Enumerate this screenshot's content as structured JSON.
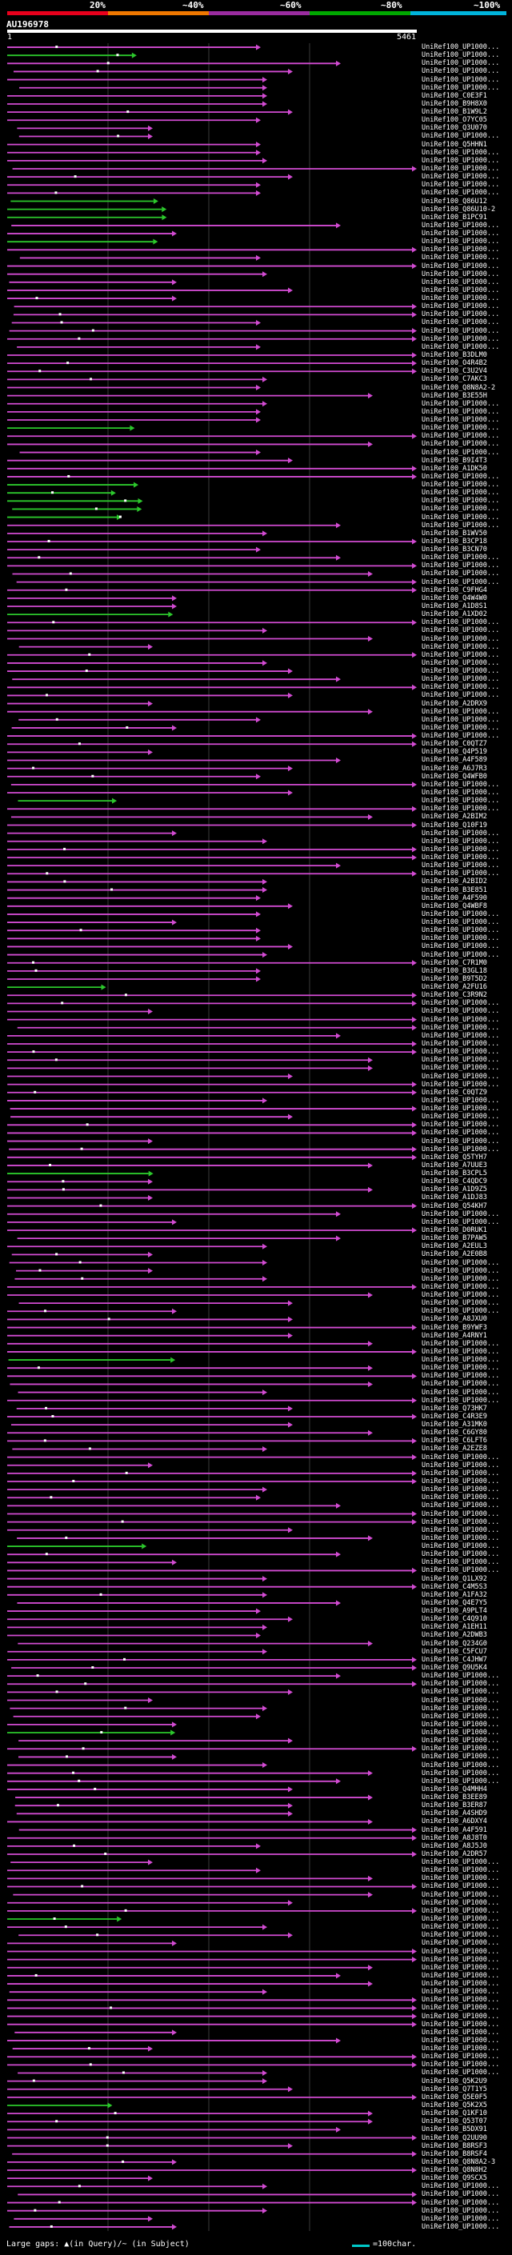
{
  "header": {
    "scale_marks": [
      {
        "label": "20%",
        "color": "#e8001c"
      },
      {
        "label": "~40%",
        "color": "#f07800"
      },
      {
        "label": "~60%",
        "color": "#9b2ca0"
      },
      {
        "label": "~80%",
        "color": "#00a800"
      },
      {
        "label": "~100%",
        "color": "#00b4dc"
      }
    ],
    "query_id": "AU196978",
    "query_start": "1",
    "query_end": "5461"
  },
  "colors": {
    "magenta": "#d24bd2",
    "green": "#2cc82c",
    "grid": "#3a3a3a",
    "dot": "#ffffff"
  },
  "hits": [
    "UniRef100_UP1000...",
    "UniRef100_UP1000...",
    "UniRef100_UP1000...",
    "UniRef100_UP1000...",
    "UniRef100_UP1000...",
    "UniRef100_UP1000...",
    "UniRef100_C0E3F1",
    "UniRef100_B9H8X0",
    "UniRef100_B1W9L2",
    "UniRef100_O7YC05",
    "UniRef100_Q3U070",
    "UniRef100_UP1000...",
    "UniRef100_Q5HHN1",
    "UniRef100_UP1000...",
    "UniRef100_UP1000...",
    "UniRef100_UP1000...",
    "UniRef100_UP1000...",
    "UniRef100_UP1000...",
    "UniRef100_UP1000...",
    "UniRef100_Q86U12",
    "UniRef100_Q86U10-2",
    "UniRef100_B1PC91",
    "UniRef100_UP1000...",
    "UniRef100_UP1000...",
    "UniRef100_UP1000...",
    "UniRef100_UP1000...",
    "UniRef100_UP1000...",
    "UniRef100_UP1000...",
    "UniRef100_UP1000...",
    "UniRef100_UP1000...",
    "UniRef100_UP1000...",
    "UniRef100_UP1000...",
    "UniRef100_UP1000...",
    "UniRef100_UP1000...",
    "UniRef100_UP1000...",
    "UniRef100_UP1000...",
    "UniRef100_UP1000...",
    "UniRef100_UP1000...",
    "UniRef100_B3DLM0",
    "UniRef100_O4R4B2",
    "UniRef100_C3U2V4",
    "UniRef100_C7AKC3",
    "UniRef100_Q8N8A2-2",
    "UniRef100_B3E55H",
    "UniRef100_UP1000...",
    "UniRef100_UP1000...",
    "UniRef100_UP1000...",
    "UniRef100_UP1000...",
    "UniRef100_UP1000...",
    "UniRef100_UP1000...",
    "UniRef100_UP1000...",
    "UniRef100_B9I4T3",
    "UniRef100_A1DK50",
    "UniRef100_UP1000...",
    "UniRef100_UP1000...",
    "UniRef100_UP1000...",
    "UniRef100_UP1000...",
    "UniRef100_UP1000...",
    "UniRef100_UP1000...",
    "UniRef100_UP1000...",
    "UniRef100_B1WV50",
    "UniRef100_B3CP18",
    "UniRef100_B3CN70",
    "UniRef100_UP1000...",
    "UniRef100_UP1000...",
    "UniRef100_UP1000...",
    "UniRef100_UP1000...",
    "UniRef100_C9FHG4",
    "UniRef100_Q4W4W0",
    "UniRef100_A1D8S1",
    "UniRef100_A1XD02",
    "UniRef100_UP1000...",
    "UniRef100_UP1000...",
    "UniRef100_UP1000...",
    "UniRef100_UP1000...",
    "UniRef100_UP1000...",
    "UniRef100_UP1000...",
    "UniRef100_UP1000...",
    "UniRef100_UP1000...",
    "UniRef100_UP1000...",
    "UniRef100_UP1000...",
    "UniRef100_A2DRX9",
    "UniRef100_UP1000...",
    "UniRef100_UP1000...",
    "UniRef100_UP1000...",
    "UniRef100_UP1000...",
    "UniRef100_C0QTZ7",
    "UniRef100_Q4P519",
    "UniRef100_A4F589",
    "UniRef100_A6J7R3",
    "UniRef100_Q4WFB0",
    "UniRef100_UP1000...",
    "UniRef100_UP1000...",
    "UniRef100_UP1000...",
    "UniRef100_UP1000...",
    "UniRef100_A2BIM2",
    "UniRef100_Q10F19",
    "UniRef100_UP1000...",
    "UniRef100_UP1000...",
    "UniRef100_UP1000...",
    "UniRef100_UP1000...",
    "UniRef100_UP1000...",
    "UniRef100_UP1000...",
    "UniRef100_A2BID2",
    "UniRef100_B3E851",
    "UniRef100_A4F590",
    "UniRef100_Q4WBF8",
    "UniRef100_UP1000...",
    "UniRef100_UP1000...",
    "UniRef100_UP1000...",
    "UniRef100_UP1000...",
    "UniRef100_UP1000...",
    "UniRef100_UP1000...",
    "UniRef100_C7R1M0",
    "UniRef100_B3GL18",
    "UniRef100_B9T5D2",
    "UniRef100_A2FU16",
    "UniRef100_C3R9N2",
    "UniRef100_UP1000...",
    "UniRef100_UP1000...",
    "UniRef100_UP1000...",
    "UniRef100_UP1000...",
    "UniRef100_UP1000...",
    "UniRef100_UP1000...",
    "UniRef100_UP1000...",
    "UniRef100_UP1000...",
    "UniRef100_UP1000...",
    "UniRef100_UP1000...",
    "UniRef100_UP1000...",
    "UniRef100_C0QTZ9",
    "UniRef100_UP1000...",
    "UniRef100_UP1000...",
    "UniRef100_UP1000...",
    "UniRef100_UP1000...",
    "UniRef100_UP1000...",
    "UniRef100_UP1000...",
    "UniRef100_UP1000...",
    "UniRef100_Q5TYH7",
    "UniRef100_A7UUE3",
    "UniRef100_B3CPL5",
    "UniRef100_C4QDC9",
    "UniRef100_A1D9Z5",
    "UniRef100_A1DJ83",
    "UniRef100_Q54KH7",
    "UniRef100_UP1000...",
    "UniRef100_UP1000...",
    "UniRef100_D0RUK1",
    "UniRef100_B7PAW5",
    "UniRef100_A2EUL3",
    "UniRef100_A2E0B8",
    "UniRef100_UP1000...",
    "UniRef100_UP1000...",
    "UniRef100_UP1000...",
    "UniRef100_UP1000...",
    "UniRef100_UP1000...",
    "UniRef100_UP1000...",
    "UniRef100_UP1000...",
    "UniRef100_A8JXU0",
    "UniRef100_B9YWF3",
    "UniRef100_A4RNY1",
    "UniRef100_UP1000...",
    "UniRef100_UP1000...",
    "UniRef100_UP1000...",
    "UniRef100_UP1000...",
    "UniRef100_UP1000...",
    "UniRef100_UP1000...",
    "UniRef100_UP1000...",
    "UniRef100_UP1000...",
    "UniRef100_Q73HK7",
    "UniRef100_C4R3E9",
    "UniRef100_A31MK0",
    "UniRef100_C6GY80",
    "UniRef100_C6LFT6",
    "UniRef100_A2EZE8",
    "UniRef100_UP1000...",
    "UniRef100_UP1000...",
    "UniRef100_UP1000...",
    "UniRef100_UP1000...",
    "UniRef100_UP1000...",
    "UniRef100_UP1000...",
    "UniRef100_UP1000...",
    "UniRef100_UP1000...",
    "UniRef100_UP1000...",
    "UniRef100_UP1000...",
    "UniRef100_UP1000...",
    "UniRef100_UP1000...",
    "UniRef100_UP1000...",
    "UniRef100_UP1000...",
    "UniRef100_UP1000...",
    "UniRef100_Q1LX92",
    "UniRef100_C4M5S3",
    "UniRef100_A1FA32",
    "UniRef100_Q4E7Y5",
    "UniRef100_A9PLT4",
    "UniRef100_C4Q910",
    "UniRef100_A1EH11",
    "UniRef100_A2DWB3",
    "UniRef100_Q234G0",
    "UniRef100_C5FCU7",
    "UniRef100_C4JHW7",
    "UniRef100_Q9U5K4",
    "UniRef100_UP1000...",
    "UniRef100_UP1000...",
    "UniRef100_UP1000...",
    "UniRef100_UP1000...",
    "UniRef100_UP1000...",
    "UniRef100_UP1000...",
    "UniRef100_UP1000...",
    "UniRef100_UP1000...",
    "UniRef100_UP1000...",
    "UniRef100_UP1000...",
    "UniRef100_UP1000...",
    "UniRef100_UP1000...",
    "UniRef100_UP1000...",
    "UniRef100_UP1000...",
    "UniRef100_Q4MHH4",
    "UniRef100_B3EE89",
    "UniRef100_B3ER87",
    "UniRef100_A4SHD9",
    "UniRef100_A6DXY4",
    "UniRef100_A4F591",
    "UniRef100_A8J8T0",
    "UniRef100_A8J5J0",
    "UniRef100_A2DR57",
    "UniRef100_UP1000...",
    "UniRef100_UP1000...",
    "UniRef100_UP1000...",
    "UniRef100_UP1000...",
    "UniRef100_UP1000...",
    "UniRef100_UP1000...",
    "UniRef100_UP1000...",
    "UniRef100_UP1000...",
    "UniRef100_UP1000...",
    "UniRef100_UP1000...",
    "UniRef100_UP1000...",
    "UniRef100_UP1000...",
    "UniRef100_UP1000...",
    "UniRef100_UP1000...",
    "UniRef100_UP1000...",
    "UniRef100_UP1000...",
    "UniRef100_UP1000...",
    "UniRef100_UP1000...",
    "UniRef100_UP1000...",
    "UniRef100_UP1000...",
    "UniRef100_UP1000...",
    "UniRef100_UP1000...",
    "UniRef100_UP1000...",
    "UniRef100_UP1000...",
    "UniRef100_UP1000...",
    "UniRef100_UP1000...",
    "UniRef100_UP1000...",
    "UniRef100_Q5K2U9",
    "UniRef100_Q7T1Y5",
    "UniRef100_Q5E0F5",
    "UniRef100_Q5K2X5",
    "UniRef100_Q1KF10",
    "UniRef100_Q53T07",
    "UniRef100_B5DX91",
    "UniRef100_Q2UU90",
    "UniRef100_B8RSF3",
    "UniRef100_B8RSF4",
    "UniRef100_Q8N8A2-3",
    "UniRef100_Q8N8H2",
    "UniRef100_Q9SCX5",
    "UniRef100_UP1000...",
    "UniRef100_UP1000...",
    "UniRef100_UP1000...",
    "UniRef100_UP1000...",
    "UniRef100_UP1000...",
    "UniRef100_UP1000..."
  ],
  "footer": {
    "large_gaps_label": "Large gaps: ▲(in Query)/~ (in Subject)",
    "scale_label": "=100char."
  }
}
